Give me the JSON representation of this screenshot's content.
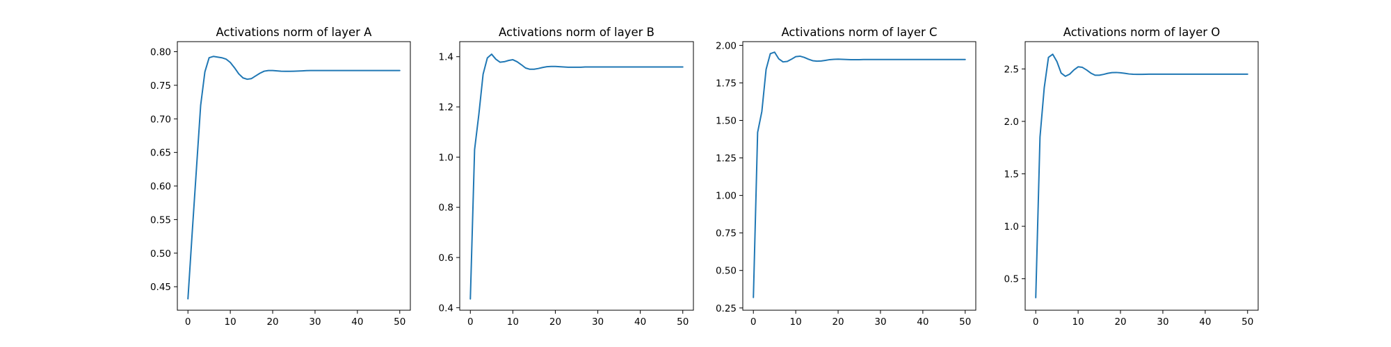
{
  "chart_data": [
    {
      "type": "line",
      "title": "Activations norm of layer A",
      "xlabel": "",
      "ylabel": "",
      "xlim": [
        -2.5,
        52.5
      ],
      "ylim": [
        0.415,
        0.815
      ],
      "xticks": [
        0,
        10,
        20,
        30,
        40,
        50
      ],
      "yticks": [
        0.45,
        0.5,
        0.55,
        0.6,
        0.65,
        0.7,
        0.75,
        0.8
      ],
      "ytick_decimals": 2,
      "grid": false,
      "series_color": "#1f77b4",
      "series": [
        {
          "name": "",
          "x": [
            0,
            1,
            2,
            3,
            4,
            5,
            6,
            7,
            8,
            9,
            10,
            11,
            12,
            13,
            14,
            15,
            16,
            17,
            18,
            19,
            20,
            21,
            22,
            23,
            24,
            25,
            26,
            27,
            28,
            29,
            30,
            31,
            32,
            33,
            34,
            35,
            36,
            37,
            38,
            39,
            40,
            41,
            42,
            43,
            44,
            45,
            46,
            47,
            48,
            49,
            50
          ],
          "y": [
            0.432,
            0.53,
            0.625,
            0.72,
            0.77,
            0.791,
            0.793,
            0.792,
            0.791,
            0.789,
            0.784,
            0.776,
            0.767,
            0.761,
            0.759,
            0.76,
            0.764,
            0.768,
            0.771,
            0.772,
            0.772,
            0.7715,
            0.771,
            0.7708,
            0.7708,
            0.771,
            0.7712,
            0.7715,
            0.7718,
            0.772,
            0.772,
            0.772,
            0.772,
            0.772,
            0.772,
            0.772,
            0.772,
            0.772,
            0.772,
            0.772,
            0.772,
            0.772,
            0.772,
            0.772,
            0.772,
            0.772,
            0.772,
            0.772,
            0.772,
            0.772,
            0.772
          ]
        }
      ]
    },
    {
      "type": "line",
      "title": "Activations norm of layer B",
      "xlabel": "",
      "ylabel": "",
      "xlim": [
        -2.5,
        52.5
      ],
      "ylim": [
        0.39,
        1.46
      ],
      "xticks": [
        0,
        10,
        20,
        30,
        40,
        50
      ],
      "yticks": [
        0.4,
        0.6,
        0.8,
        1.0,
        1.2,
        1.4
      ],
      "ytick_decimals": 1,
      "grid": false,
      "series_color": "#1f77b4",
      "series": [
        {
          "name": "",
          "x": [
            0,
            1,
            2,
            3,
            4,
            5,
            6,
            7,
            8,
            9,
            10,
            11,
            12,
            13,
            14,
            15,
            16,
            17,
            18,
            19,
            20,
            21,
            22,
            23,
            24,
            25,
            26,
            27,
            28,
            29,
            30,
            31,
            32,
            33,
            34,
            35,
            36,
            37,
            38,
            39,
            40,
            41,
            42,
            43,
            44,
            45,
            46,
            47,
            48,
            49,
            50
          ],
          "y": [
            0.435,
            1.03,
            1.17,
            1.33,
            1.395,
            1.41,
            1.39,
            1.378,
            1.38,
            1.385,
            1.388,
            1.38,
            1.368,
            1.355,
            1.35,
            1.35,
            1.353,
            1.357,
            1.36,
            1.361,
            1.361,
            1.36,
            1.359,
            1.358,
            1.358,
            1.358,
            1.358,
            1.359,
            1.359,
            1.359,
            1.359,
            1.359,
            1.359,
            1.359,
            1.359,
            1.359,
            1.359,
            1.359,
            1.359,
            1.359,
            1.359,
            1.359,
            1.359,
            1.359,
            1.359,
            1.359,
            1.359,
            1.359,
            1.359,
            1.359,
            1.359
          ]
        }
      ]
    },
    {
      "type": "line",
      "title": "Activations norm of layer C",
      "xlabel": "",
      "ylabel": "",
      "xlim": [
        -2.5,
        52.5
      ],
      "ylim": [
        0.235,
        2.025
      ],
      "xticks": [
        0,
        10,
        20,
        30,
        40,
        50
      ],
      "yticks": [
        0.25,
        0.5,
        0.75,
        1.0,
        1.25,
        1.5,
        1.75,
        2.0
      ],
      "ytick_decimals": 2,
      "grid": false,
      "series_color": "#1f77b4",
      "series": [
        {
          "name": "",
          "x": [
            0,
            1,
            2,
            3,
            4,
            5,
            6,
            7,
            8,
            9,
            10,
            11,
            12,
            13,
            14,
            15,
            16,
            17,
            18,
            19,
            20,
            21,
            22,
            23,
            24,
            25,
            26,
            27,
            28,
            29,
            30,
            31,
            32,
            33,
            34,
            35,
            36,
            37,
            38,
            39,
            40,
            41,
            42,
            43,
            44,
            45,
            46,
            47,
            48,
            49,
            50
          ],
          "y": [
            0.32,
            1.42,
            1.56,
            1.84,
            1.945,
            1.955,
            1.91,
            1.89,
            1.893,
            1.908,
            1.925,
            1.928,
            1.92,
            1.908,
            1.898,
            1.895,
            1.896,
            1.9,
            1.905,
            1.907,
            1.908,
            1.907,
            1.906,
            1.905,
            1.905,
            1.905,
            1.906,
            1.906,
            1.906,
            1.906,
            1.906,
            1.906,
            1.906,
            1.906,
            1.906,
            1.906,
            1.906,
            1.906,
            1.906,
            1.906,
            1.906,
            1.906,
            1.906,
            1.906,
            1.906,
            1.906,
            1.906,
            1.906,
            1.906,
            1.906,
            1.906
          ]
        }
      ]
    },
    {
      "type": "line",
      "title": "Activations norm of layer O",
      "xlabel": "",
      "ylabel": "",
      "xlim": [
        -2.5,
        52.5
      ],
      "ylim": [
        0.2,
        2.76
      ],
      "xticks": [
        0,
        10,
        20,
        30,
        40,
        50
      ],
      "yticks": [
        0.5,
        1.0,
        1.5,
        2.0,
        2.5
      ],
      "ytick_decimals": 1,
      "grid": false,
      "series_color": "#1f77b4",
      "series": [
        {
          "name": "",
          "x": [
            0,
            1,
            2,
            3,
            4,
            5,
            6,
            7,
            8,
            9,
            10,
            11,
            12,
            13,
            14,
            15,
            16,
            17,
            18,
            19,
            20,
            21,
            22,
            23,
            24,
            25,
            26,
            27,
            28,
            29,
            30,
            31,
            32,
            33,
            34,
            35,
            36,
            37,
            38,
            39,
            40,
            41,
            42,
            43,
            44,
            45,
            46,
            47,
            48,
            49,
            50
          ],
          "y": [
            0.32,
            1.85,
            2.32,
            2.61,
            2.64,
            2.57,
            2.46,
            2.43,
            2.45,
            2.49,
            2.52,
            2.515,
            2.49,
            2.46,
            2.44,
            2.44,
            2.448,
            2.458,
            2.465,
            2.466,
            2.463,
            2.458,
            2.452,
            2.449,
            2.448,
            2.448,
            2.449,
            2.45,
            2.45,
            2.45,
            2.45,
            2.45,
            2.45,
            2.45,
            2.45,
            2.45,
            2.45,
            2.45,
            2.45,
            2.45,
            2.45,
            2.45,
            2.45,
            2.45,
            2.45,
            2.45,
            2.45,
            2.45,
            2.45,
            2.45,
            2.45
          ]
        }
      ]
    }
  ]
}
